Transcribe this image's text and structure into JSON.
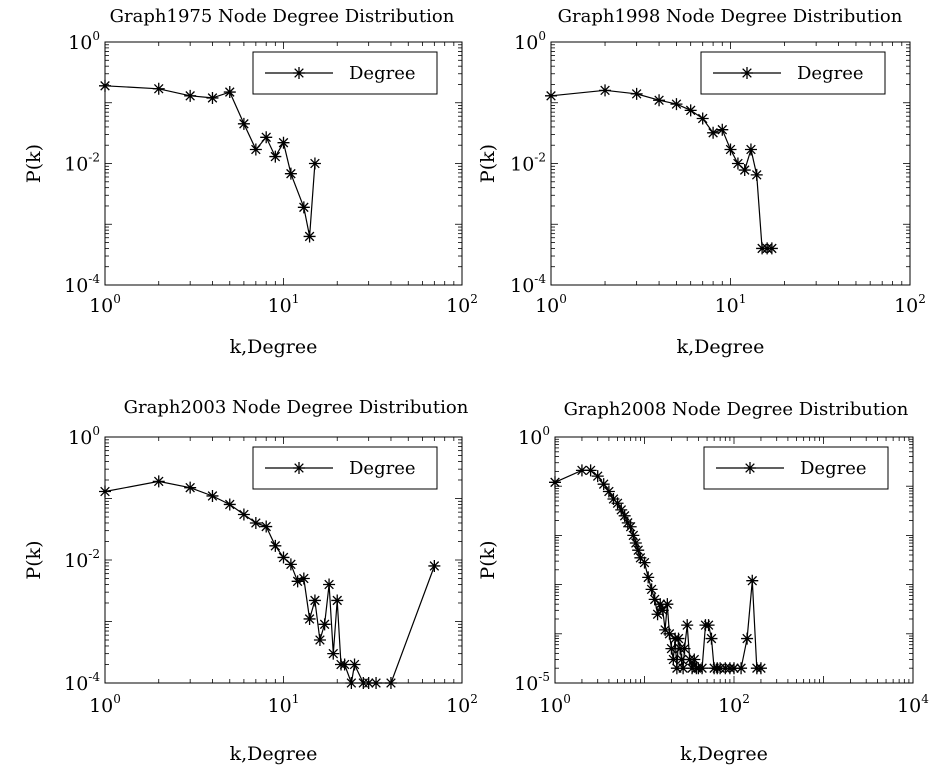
{
  "chart_data": [
    {
      "type": "line",
      "title": "Graph1975 Node Degree Distribution",
      "xlabel": "k,Degree",
      "ylabel": "P(k)",
      "xscale": "log",
      "yscale": "log",
      "xlim": [
        1,
        100
      ],
      "ylim": [
        0.0001,
        1
      ],
      "xticks": [
        {
          "base": "10",
          "exp": "0"
        },
        {
          "base": "10",
          "exp": "1"
        },
        {
          "base": "10",
          "exp": "2"
        }
      ],
      "yticks": [
        {
          "base": "10",
          "exp": "0"
        },
        {
          "base": "10",
          "exp": "-2"
        },
        {
          "base": "10",
          "exp": "-4"
        }
      ],
      "legend": {
        "position": "top-right",
        "entries": [
          "Degree"
        ]
      },
      "series": [
        {
          "name": "Degree",
          "x": [
            1,
            2,
            3,
            4,
            5,
            6,
            7,
            8,
            9,
            10,
            11,
            13,
            14,
            15
          ],
          "y": [
            0.19,
            0.17,
            0.13,
            0.12,
            0.15,
            0.045,
            0.017,
            0.027,
            0.013,
            0.022,
            0.0068,
            0.0019,
            0.00063,
            0.01
          ]
        }
      ]
    },
    {
      "type": "line",
      "title": "Graph1998 Node Degree Distribution",
      "xlabel": "k,Degree",
      "ylabel": "P(k)",
      "xscale": "log",
      "yscale": "log",
      "xlim": [
        1,
        100
      ],
      "ylim": [
        0.0001,
        1
      ],
      "xticks": [
        {
          "base": "10",
          "exp": "0"
        },
        {
          "base": "10",
          "exp": "1"
        },
        {
          "base": "10",
          "exp": "2"
        }
      ],
      "yticks": [
        {
          "base": "10",
          "exp": "0"
        },
        {
          "base": "10",
          "exp": "-2"
        },
        {
          "base": "10",
          "exp": "-4"
        }
      ],
      "legend": {
        "position": "top-right",
        "entries": [
          "Degree"
        ]
      },
      "series": [
        {
          "name": "Degree",
          "x": [
            1,
            2,
            3,
            4,
            5,
            6,
            7,
            8,
            9,
            10,
            11,
            12,
            13,
            14,
            15,
            16,
            17
          ],
          "y": [
            0.13,
            0.16,
            0.14,
            0.11,
            0.095,
            0.075,
            0.055,
            0.032,
            0.036,
            0.017,
            0.01,
            0.0078,
            0.017,
            0.0065,
            0.0004,
            0.0004,
            0.0004
          ]
        }
      ]
    },
    {
      "type": "line",
      "title": "Graph2003 Node Degree Distribution",
      "xlabel": "k,Degree",
      "ylabel": "P(k)",
      "xscale": "log",
      "yscale": "log",
      "xlim": [
        1,
        100
      ],
      "ylim": [
        0.0001,
        1
      ],
      "xticks": [
        {
          "base": "10",
          "exp": "0"
        },
        {
          "base": "10",
          "exp": "1"
        },
        {
          "base": "10",
          "exp": "2"
        }
      ],
      "yticks": [
        {
          "base": "10",
          "exp": "0"
        },
        {
          "base": "10",
          "exp": "-2"
        },
        {
          "base": "10",
          "exp": "-4"
        }
      ],
      "legend": {
        "position": "top-right",
        "entries": [
          "Degree"
        ]
      },
      "series": [
        {
          "name": "Degree",
          "x": [
            1,
            2,
            3,
            4,
            5,
            6,
            7,
            8,
            9,
            10,
            11,
            12,
            13,
            14,
            15,
            16,
            17,
            18,
            19,
            20,
            21,
            22,
            24,
            25,
            28,
            30,
            33,
            40,
            70
          ],
          "y": [
            0.13,
            0.19,
            0.15,
            0.11,
            0.08,
            0.055,
            0.04,
            0.035,
            0.017,
            0.011,
            0.0085,
            0.0045,
            0.005,
            0.0011,
            0.0022,
            0.0005,
            0.0009,
            0.004,
            0.0003,
            0.0022,
            0.0002,
            0.0002,
            0.0001,
            0.0002,
            0.0001,
            0.0001,
            0.0001,
            0.0001,
            0.008
          ]
        }
      ]
    },
    {
      "type": "line",
      "title": "Graph2008 Node Degree Distribution",
      "xlabel": "k,Degree",
      "ylabel": "P(k)",
      "xscale": "log",
      "yscale": "log",
      "xlim": [
        1,
        10000
      ],
      "ylim": [
        1e-05,
        1
      ],
      "xticks": [
        {
          "base": "10",
          "exp": "0"
        },
        {
          "base": "10",
          "exp": "2"
        },
        {
          "base": "10",
          "exp": "4"
        }
      ],
      "yticks": [
        {
          "base": "10",
          "exp": "0"
        },
        {
          "base": "10",
          "exp": "-5"
        }
      ],
      "legend": {
        "position": "top-right",
        "entries": [
          "Degree"
        ]
      },
      "series": [
        {
          "name": "Degree",
          "x": [
            1,
            2,
            2.5,
            3,
            3.5,
            4,
            4.5,
            5,
            5.5,
            6,
            6.5,
            7,
            7.5,
            8,
            8.5,
            9,
            10,
            11,
            12,
            13,
            14,
            15,
            16,
            17,
            18,
            19,
            20,
            21,
            22,
            23,
            24,
            25,
            26,
            27,
            28,
            30,
            32,
            34,
            36,
            38,
            40,
            44,
            48,
            52,
            56,
            60,
            65,
            70,
            80,
            90,
            100,
            120,
            140,
            160,
            180,
            200
          ],
          "y": [
            0.12,
            0.21,
            0.21,
            0.16,
            0.11,
            0.078,
            0.055,
            0.045,
            0.033,
            0.025,
            0.018,
            0.015,
            0.01,
            0.007,
            0.005,
            0.0035,
            0.0028,
            0.0014,
            0.0008,
            0.0005,
            0.00025,
            0.0004,
            0.0003,
            0.00012,
            0.0004,
            0.0001,
            5e-05,
            3e-05,
            8e-05,
            2e-05,
            8e-05,
            5e-05,
            3e-05,
            2e-05,
            5e-05,
            0.00015,
            3e-05,
            2e-05,
            3e-05,
            2e-05,
            2e-05,
            2e-05,
            0.00015,
            0.00015,
            8e-05,
            2e-05,
            2e-05,
            2e-05,
            2e-05,
            2e-05,
            2e-05,
            2e-05,
            8e-05,
            0.0012,
            2e-05,
            2e-05
          ]
        }
      ]
    }
  ]
}
